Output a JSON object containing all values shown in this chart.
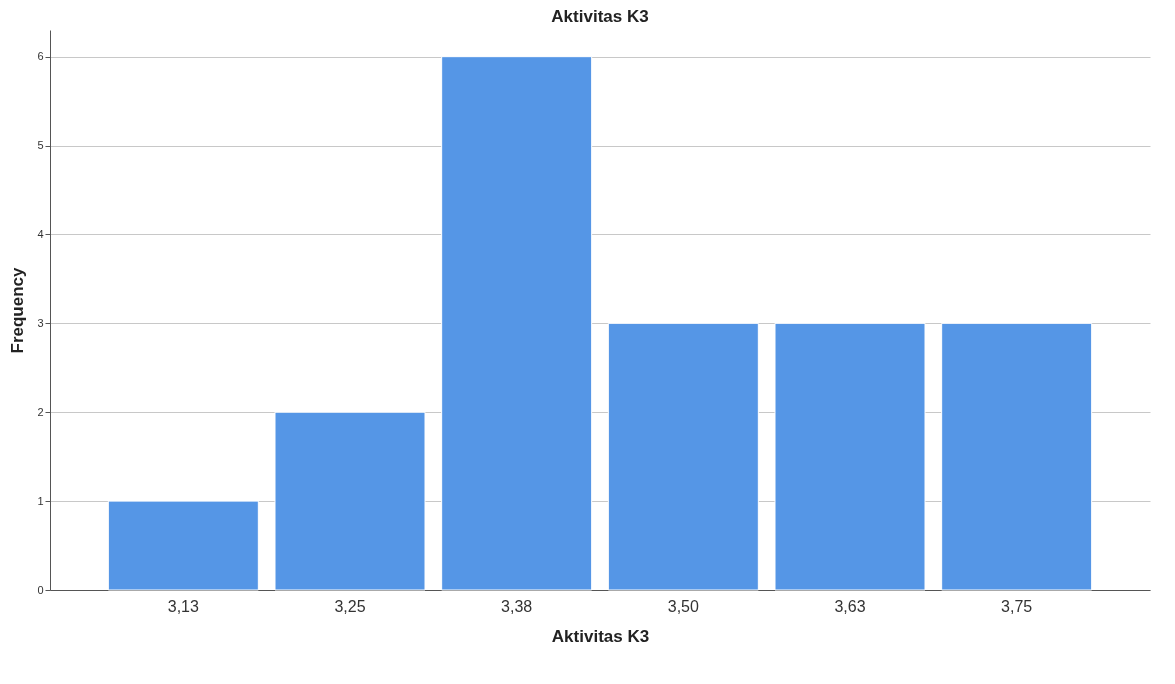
{
  "chart_data": {
    "type": "bar",
    "title": "Aktivitas K3",
    "xlabel": "Aktivitas K3",
    "ylabel": "Frequency",
    "categories": [
      "3,13",
      "3,25",
      "3,38",
      "3,50",
      "3,63",
      "3,75"
    ],
    "values": [
      1,
      2,
      6,
      3,
      3,
      3
    ],
    "color": "#5596e6",
    "ylim": [
      0,
      6.3
    ],
    "yticks": [
      0,
      1,
      2,
      3,
      4,
      5,
      6
    ],
    "grid": "y"
  }
}
